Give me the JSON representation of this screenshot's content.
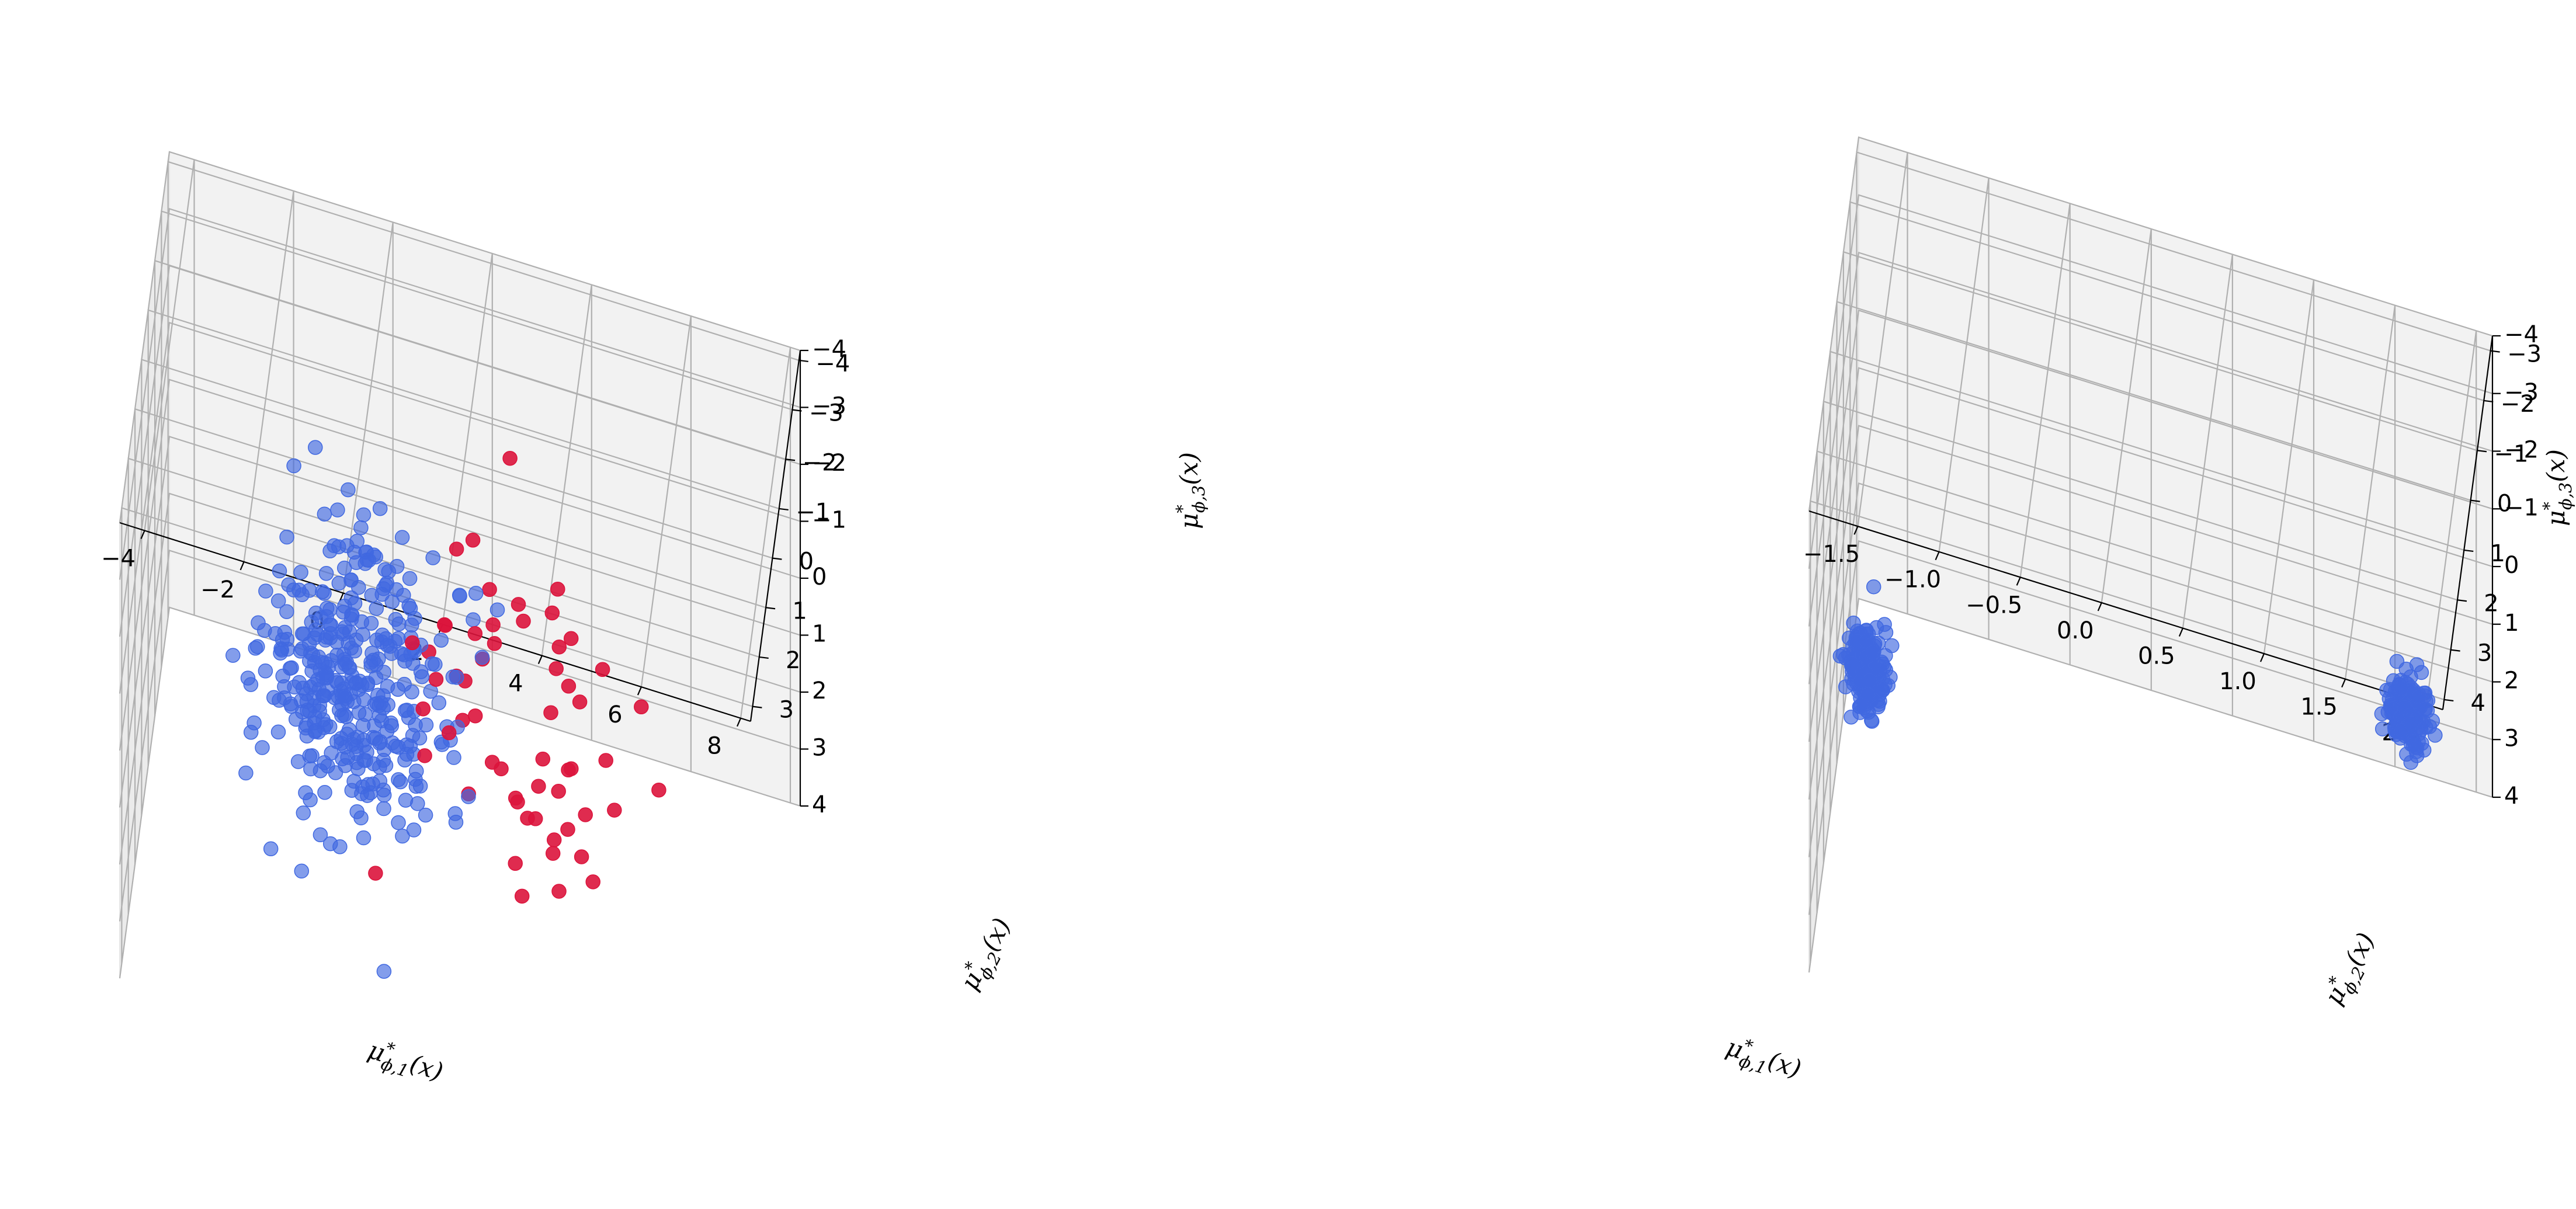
{
  "figure": {
    "colors": {
      "majority": "#4169e1",
      "minority": "#dc143c",
      "grid": "#b0b0b0",
      "pane_back": "#f2f2f2",
      "pane_side": "#ebebeb",
      "pane_floor": "#f5f5f5"
    }
  },
  "chart_data": [
    {
      "type": "scatter",
      "projection": "3d",
      "xlabel": {
        "main": "μ",
        "sup": "*",
        "sub": "ϕ,1",
        "tail": "(x)"
      },
      "ylabel": {
        "main": "μ",
        "sup": "*",
        "sub": "ϕ,2",
        "tail": "(x)"
      },
      "zlabel": {
        "main": "μ",
        "sup": "*",
        "sub": "ϕ,3",
        "tail": "(x)"
      },
      "xlim": [
        -4.5,
        8.2
      ],
      "ylim": [
        -4.2,
        3.3
      ],
      "zlim": [
        -4,
        4
      ],
      "xticks": [
        "−4",
        "−2",
        "0",
        "2",
        "4",
        "6",
        "8"
      ],
      "xtick_values": [
        -4,
        -2,
        0,
        2,
        4,
        6,
        8
      ],
      "yticks": [
        "−4",
        "−3",
        "−2",
        "−1",
        "0",
        "1",
        "2",
        "3"
      ],
      "ytick_values": [
        -4,
        -3,
        -2,
        -1,
        0,
        1,
        2,
        3
      ],
      "zticks": [
        "−4",
        "−3",
        "−2",
        "−1",
        "0",
        "1",
        "2",
        "3",
        "4"
      ],
      "ztick_values": [
        -4,
        -3,
        -2,
        -1,
        0,
        1,
        2,
        3,
        4
      ],
      "grid": true,
      "series": [
        {
          "color": "#4169e1",
          "alpha": 0.65,
          "cluster": {
            "count": 380,
            "center": [
              -0.3,
              0.2,
              0.3
            ],
            "std": [
              1.0,
              1.0,
              1.0
            ]
          }
        },
        {
          "color": "#dc143c",
          "alpha": 0.9,
          "cluster": {
            "count": 58,
            "center": [
              3.0,
              0.5,
              0.0
            ],
            "std": [
              1.4,
              1.1,
              1.3
            ]
          }
        }
      ]
    },
    {
      "type": "scatter",
      "projection": "3d",
      "xlabel": {
        "main": "μ",
        "sup": "*",
        "sub": "ϕ,1",
        "tail": "(x)"
      },
      "ylabel": {
        "main": "μ",
        "sup": "*",
        "sub": "ϕ,2",
        "tail": "(x)"
      },
      "zlabel": {
        "main": "μ",
        "sup": "*",
        "sub": "ϕ,3",
        "tail": "(x)"
      },
      "xlim": [
        -1.8,
        2.1
      ],
      "ylim": [
        -3.3,
        4.2
      ],
      "zlim": [
        -4,
        4
      ],
      "xticks": [
        "−1.5",
        "−1.0",
        "−0.5",
        "0.0",
        "0.5",
        "1.0",
        "1.5",
        "2.0"
      ],
      "xtick_values": [
        -1.5,
        -1.0,
        -0.5,
        0.0,
        0.5,
        1.0,
        1.5,
        2.0
      ],
      "yticks": [
        "−3",
        "−2",
        "−1",
        "0",
        "1",
        "2",
        "3",
        "4"
      ],
      "ytick_values": [
        -3,
        -2,
        -1,
        0,
        1,
        2,
        3,
        4
      ],
      "zticks": [
        "−4",
        "−3",
        "−2",
        "−1",
        "0",
        "1",
        "2",
        "3",
        "4"
      ],
      "ztick_values": [
        -4,
        -3,
        -2,
        -1,
        0,
        1,
        2,
        3,
        4
      ],
      "grid": true,
      "series": [
        {
          "color": "#4169e1",
          "alpha": 0.65,
          "cluster": {
            "count": 180,
            "center": [
              -1.6,
              0.6,
              1.6
            ],
            "std": [
              0.06,
              0.22,
              0.28
            ]
          }
        },
        {
          "color": "#4169e1",
          "alpha": 0.65,
          "cluster": {
            "count": 180,
            "center": [
              1.85,
              3.6,
              -3.2
            ],
            "std": [
              0.06,
              0.22,
              0.25
            ]
          }
        }
      ]
    }
  ]
}
